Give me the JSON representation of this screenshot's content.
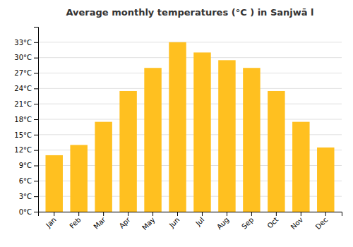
{
  "chart_data": {
    "type": "bar",
    "title": "Average monthly temperatures (°C ) in Sanjwā l",
    "categories": [
      "Jan",
      "Feb",
      "Mar",
      "Apr",
      "May",
      "Jun",
      "Jul",
      "Aug",
      "Sep",
      "Oct",
      "Nov",
      "Dec"
    ],
    "values": [
      11,
      13,
      17.5,
      23.5,
      28,
      33,
      31,
      29.5,
      28,
      23.5,
      17.5,
      12.5
    ],
    "color": "#FFC020",
    "ylim": [
      0,
      36
    ],
    "yticks": [
      {
        "value": 0,
        "label": "0°C"
      },
      {
        "value": 3,
        "label": "3°C"
      },
      {
        "value": 6,
        "label": "6°C"
      },
      {
        "value": 9,
        "label": "9°C"
      },
      {
        "value": 12,
        "label": "12°C"
      },
      {
        "value": 15,
        "label": "15°C"
      },
      {
        "value": 18,
        "label": "18°C"
      },
      {
        "value": 21,
        "label": "21°C"
      },
      {
        "value": 24,
        "label": "24°C"
      },
      {
        "value": 27,
        "label": "27°C"
      },
      {
        "value": 30,
        "label": "30°C"
      },
      {
        "value": 33,
        "label": "33°C"
      }
    ],
    "grid": true
  }
}
